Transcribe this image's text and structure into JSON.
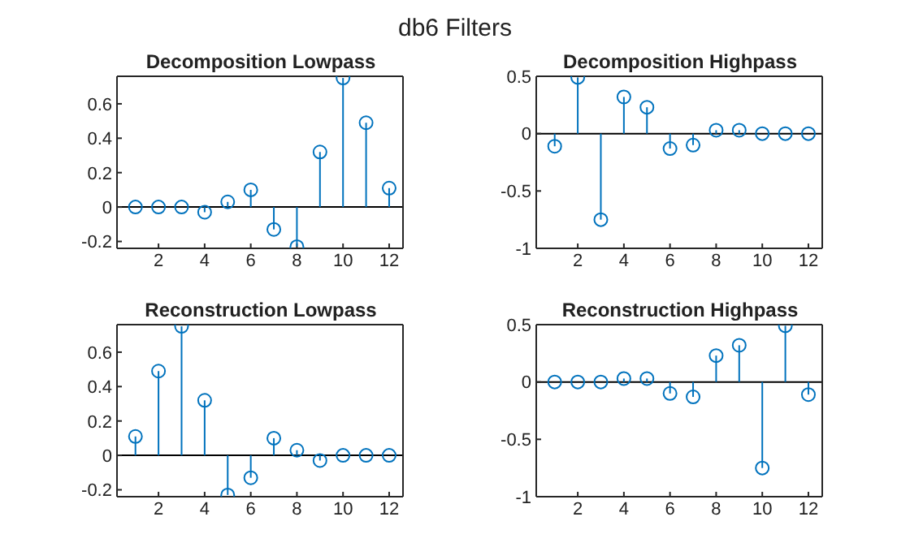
{
  "chart_data": [
    {
      "type": "lollipop",
      "title": "Decomposition Lowpass",
      "annotations": [
        "db6 Filters"
      ],
      "x": [
        1,
        2,
        3,
        4,
        5,
        6,
        7,
        8,
        9,
        10,
        11,
        12
      ],
      "series": [
        {
          "color": "#0072bd",
          "values": [
            0,
            0,
            0,
            -0.03,
            0.03,
            0.1,
            -0.13,
            -0.23,
            0.32,
            0.75,
            0.49,
            0.11
          ]
        }
      ],
      "xlim": [
        0.2,
        12.6
      ],
      "xticks": [
        2,
        4,
        6,
        8,
        10,
        12
      ],
      "ylim": [
        -0.24,
        0.76
      ],
      "yticks": [
        -0.2,
        0,
        0.2,
        0.4,
        0.6
      ],
      "marker": "circle",
      "ref_lines": [
        {
          "axis": "y",
          "value": 0,
          "color": "#000000"
        }
      ]
    },
    {
      "type": "lollipop",
      "title": "Decomposition Highpass",
      "x": [
        1,
        2,
        3,
        4,
        5,
        6,
        7,
        8,
        9,
        10,
        11,
        12
      ],
      "series": [
        {
          "color": "#0072bd",
          "values": [
            -0.11,
            0.49,
            -0.75,
            0.32,
            0.23,
            -0.13,
            -0.1,
            0.03,
            0.03,
            0,
            0,
            0
          ]
        }
      ],
      "xlim": [
        0.2,
        12.6
      ],
      "xticks": [
        2,
        4,
        6,
        8,
        10,
        12
      ],
      "ylim": [
        -1,
        0.5
      ],
      "yticks": [
        -1,
        -0.5,
        0,
        0.5
      ],
      "marker": "circle",
      "ref_lines": [
        {
          "axis": "y",
          "value": 0,
          "color": "#000000"
        }
      ]
    },
    {
      "type": "lollipop",
      "title": "Reconstruction Lowpass",
      "x": [
        1,
        2,
        3,
        4,
        5,
        6,
        7,
        8,
        9,
        10,
        11,
        12
      ],
      "series": [
        {
          "color": "#0072bd",
          "values": [
            0.11,
            0.49,
            0.75,
            0.32,
            -0.23,
            -0.13,
            0.1,
            0.03,
            -0.03,
            0,
            0,
            0
          ]
        }
      ],
      "xlim": [
        0.2,
        12.6
      ],
      "xticks": [
        2,
        4,
        6,
        8,
        10,
        12
      ],
      "ylim": [
        -0.24,
        0.76
      ],
      "yticks": [
        -0.2,
        0,
        0.2,
        0.4,
        0.6
      ],
      "marker": "circle",
      "ref_lines": [
        {
          "axis": "y",
          "value": 0,
          "color": "#000000"
        }
      ]
    },
    {
      "type": "lollipop",
      "title": "Reconstruction Highpass",
      "x": [
        1,
        2,
        3,
        4,
        5,
        6,
        7,
        8,
        9,
        10,
        11,
        12
      ],
      "series": [
        {
          "color": "#0072bd",
          "values": [
            0,
            0,
            0,
            0.03,
            0.03,
            -0.1,
            -0.13,
            0.23,
            0.32,
            -0.75,
            0.49,
            -0.11
          ]
        }
      ],
      "xlim": [
        0.2,
        12.6
      ],
      "xticks": [
        2,
        4,
        6,
        8,
        10,
        12
      ],
      "ylim": [
        -1,
        0.5
      ],
      "yticks": [
        -1,
        -0.5,
        0,
        0.5
      ],
      "marker": "circle",
      "ref_lines": [
        {
          "axis": "y",
          "value": 0,
          "color": "#000000"
        }
      ]
    }
  ]
}
